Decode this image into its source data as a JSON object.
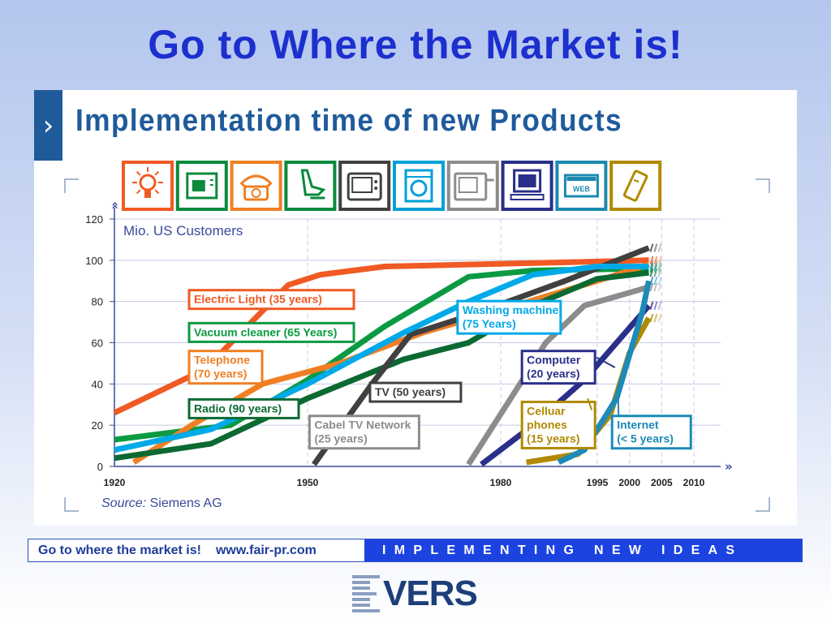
{
  "slide": {
    "title": "Go to Where the Market is!"
  },
  "panel": {
    "title": "Implementation time of new Products"
  },
  "icons": [
    {
      "name": "light-bulb-icon",
      "color": "#f05a24"
    },
    {
      "name": "vacuum-cleaner-icon",
      "color": "#0b8a3c"
    },
    {
      "name": "telephone-icon",
      "color": "#f07f24"
    },
    {
      "name": "radio-icon",
      "color": "#0b8a3c"
    },
    {
      "name": "tv-icon",
      "color": "#404040"
    },
    {
      "name": "washing-machine-icon",
      "color": "#00a0d8"
    },
    {
      "name": "cable-tv-icon",
      "color": "#8c8c8c"
    },
    {
      "name": "computer-icon",
      "color": "#2a2f8a"
    },
    {
      "name": "web-icon",
      "color": "#1a8ab0"
    },
    {
      "name": "cell-phone-icon",
      "color": "#b08a00"
    }
  ],
  "chart_data": {
    "type": "line",
    "unit_label": "Mio. US Customers",
    "source_label": "Source:",
    "source_value": "Siemens AG",
    "x_ticks": [
      1920,
      1950,
      1980,
      1995,
      2000,
      2005,
      2010
    ],
    "y_ticks": [
      0,
      20,
      40,
      60,
      80,
      100,
      120
    ],
    "xlim": [
      1920,
      2010
    ],
    "ylim": [
      0,
      120
    ],
    "series": [
      {
        "id": "electric-light",
        "label": "Electric Light (35 years)",
        "color": "#f05a24",
        "points": [
          [
            1920,
            26
          ],
          [
            1934,
            47
          ],
          [
            1947,
            88
          ],
          [
            1952,
            93
          ],
          [
            1962,
            97
          ],
          [
            1990,
            99
          ],
          [
            2003,
            100
          ]
        ],
        "label_box": {
          "x": 1931.6,
          "y": 85.5
        },
        "label_lines": [
          "Electric Light (35 years)"
        ]
      },
      {
        "id": "vacuum-cleaner",
        "label": "Vacuum cleaner (65 Years)",
        "color": "#0b9a42",
        "points": [
          [
            1920,
            13
          ],
          [
            1938,
            20
          ],
          [
            1950,
            42
          ],
          [
            1962,
            68
          ],
          [
            1975,
            92
          ],
          [
            1985,
            95
          ],
          [
            2003,
            96
          ]
        ],
        "label_box": {
          "x": 1931.6,
          "y": 69.5
        },
        "label_lines": [
          "Vacuum cleaner (65 Years)"
        ]
      },
      {
        "id": "telephone",
        "label": "Telephone (70 years)",
        "color": "#f07f24",
        "points": [
          [
            1923,
            2
          ],
          [
            1932,
            20
          ],
          [
            1943,
            40
          ],
          [
            1955,
            50
          ],
          [
            1968,
            65
          ],
          [
            1978,
            74
          ],
          [
            1995,
            90
          ],
          [
            2003,
            98
          ]
        ],
        "label_box": {
          "x": 1931.6,
          "y": 56
        },
        "label_lines": [
          "Telephone",
          "(70 years)"
        ]
      },
      {
        "id": "radio",
        "label": "Radio (90 years)",
        "color": "#0b6a32",
        "points": [
          [
            1920,
            4
          ],
          [
            1935,
            11
          ],
          [
            1950,
            33
          ],
          [
            1965,
            52
          ],
          [
            1975,
            60
          ],
          [
            1985,
            78
          ],
          [
            1995,
            91
          ],
          [
            2003,
            94
          ]
        ],
        "label_box": {
          "x": 1931.6,
          "y": 32.5
        },
        "label_lines": [
          "Radio (90 years)"
        ]
      },
      {
        "id": "tv",
        "label": "TV (50 years)",
        "color": "#404040",
        "points": [
          [
            1951,
            1
          ],
          [
            1960,
            40
          ],
          [
            1966,
            64
          ],
          [
            1975,
            73
          ],
          [
            1990,
            90
          ],
          [
            2003,
            106
          ]
        ],
        "label_box": {
          "x": 1959.7,
          "y": 40.5
        },
        "label_lines": [
          "TV (50 years)"
        ]
      },
      {
        "id": "washing-machine",
        "label": "Washing machine (75 Years)",
        "color": "#00aae8",
        "points": [
          [
            1920,
            8
          ],
          [
            1935,
            18
          ],
          [
            1950,
            40
          ],
          [
            1965,
            65
          ],
          [
            1975,
            80
          ],
          [
            1985,
            93
          ],
          [
            1995,
            97
          ],
          [
            2003,
            97
          ]
        ],
        "label_box": {
          "x": 1973.3,
          "y": 80.2
        },
        "label_lines": [
          "Washing machine",
          "(75 Years)"
        ]
      },
      {
        "id": "cable-tv",
        "label": "Cabel TV Network (25 years)",
        "color": "#8c8c8c",
        "points": [
          [
            1975,
            1
          ],
          [
            1983,
            40
          ],
          [
            1987,
            60
          ],
          [
            1993,
            78
          ],
          [
            2003,
            87
          ]
        ],
        "label_box": {
          "x": 1950.3,
          "y": 24.5
        },
        "label_lines": [
          "Cabel TV Network",
          "(25 years)"
        ]
      },
      {
        "id": "computer",
        "label": "Computer (20 years)",
        "color": "#2a2f8a",
        "points": [
          [
            1977,
            1
          ],
          [
            1985,
            20
          ],
          [
            1993,
            42
          ],
          [
            2003,
            78
          ]
        ],
        "label_box": {
          "x": 1983.3,
          "y": 56
        },
        "label_lines": [
          "Computer",
          "(20 years)"
        ]
      },
      {
        "id": "cellular-phones",
        "label": "Celluar phones (15 years)",
        "color": "#b08a00",
        "points": [
          [
            1984,
            2
          ],
          [
            1992,
            6
          ],
          [
            1997,
            25
          ],
          [
            2000,
            55
          ],
          [
            2003,
            72
          ]
        ],
        "label_box": {
          "x": 1983.3,
          "y": 31.3
        },
        "label_lines": [
          "Celluar",
          "phones",
          "(15 years)"
        ]
      },
      {
        "id": "internet",
        "label": "Internet (< 5 years)",
        "color": "#1d8ab8",
        "points": [
          [
            1989,
            2
          ],
          [
            1993,
            8
          ],
          [
            1998,
            33
          ],
          [
            2002,
            75
          ],
          [
            2003,
            90
          ]
        ],
        "label_box": {
          "x": 1997.3,
          "y": 24.5
        },
        "label_lines": [
          "Internet",
          "(< 5 years)"
        ]
      }
    ]
  },
  "footer": {
    "slogan": "Go to where the market is!",
    "url": "www.fair-pr.com",
    "tagline": "IMPLEMENTING NEW IDEAS"
  },
  "logo": {
    "text": "VERS"
  }
}
